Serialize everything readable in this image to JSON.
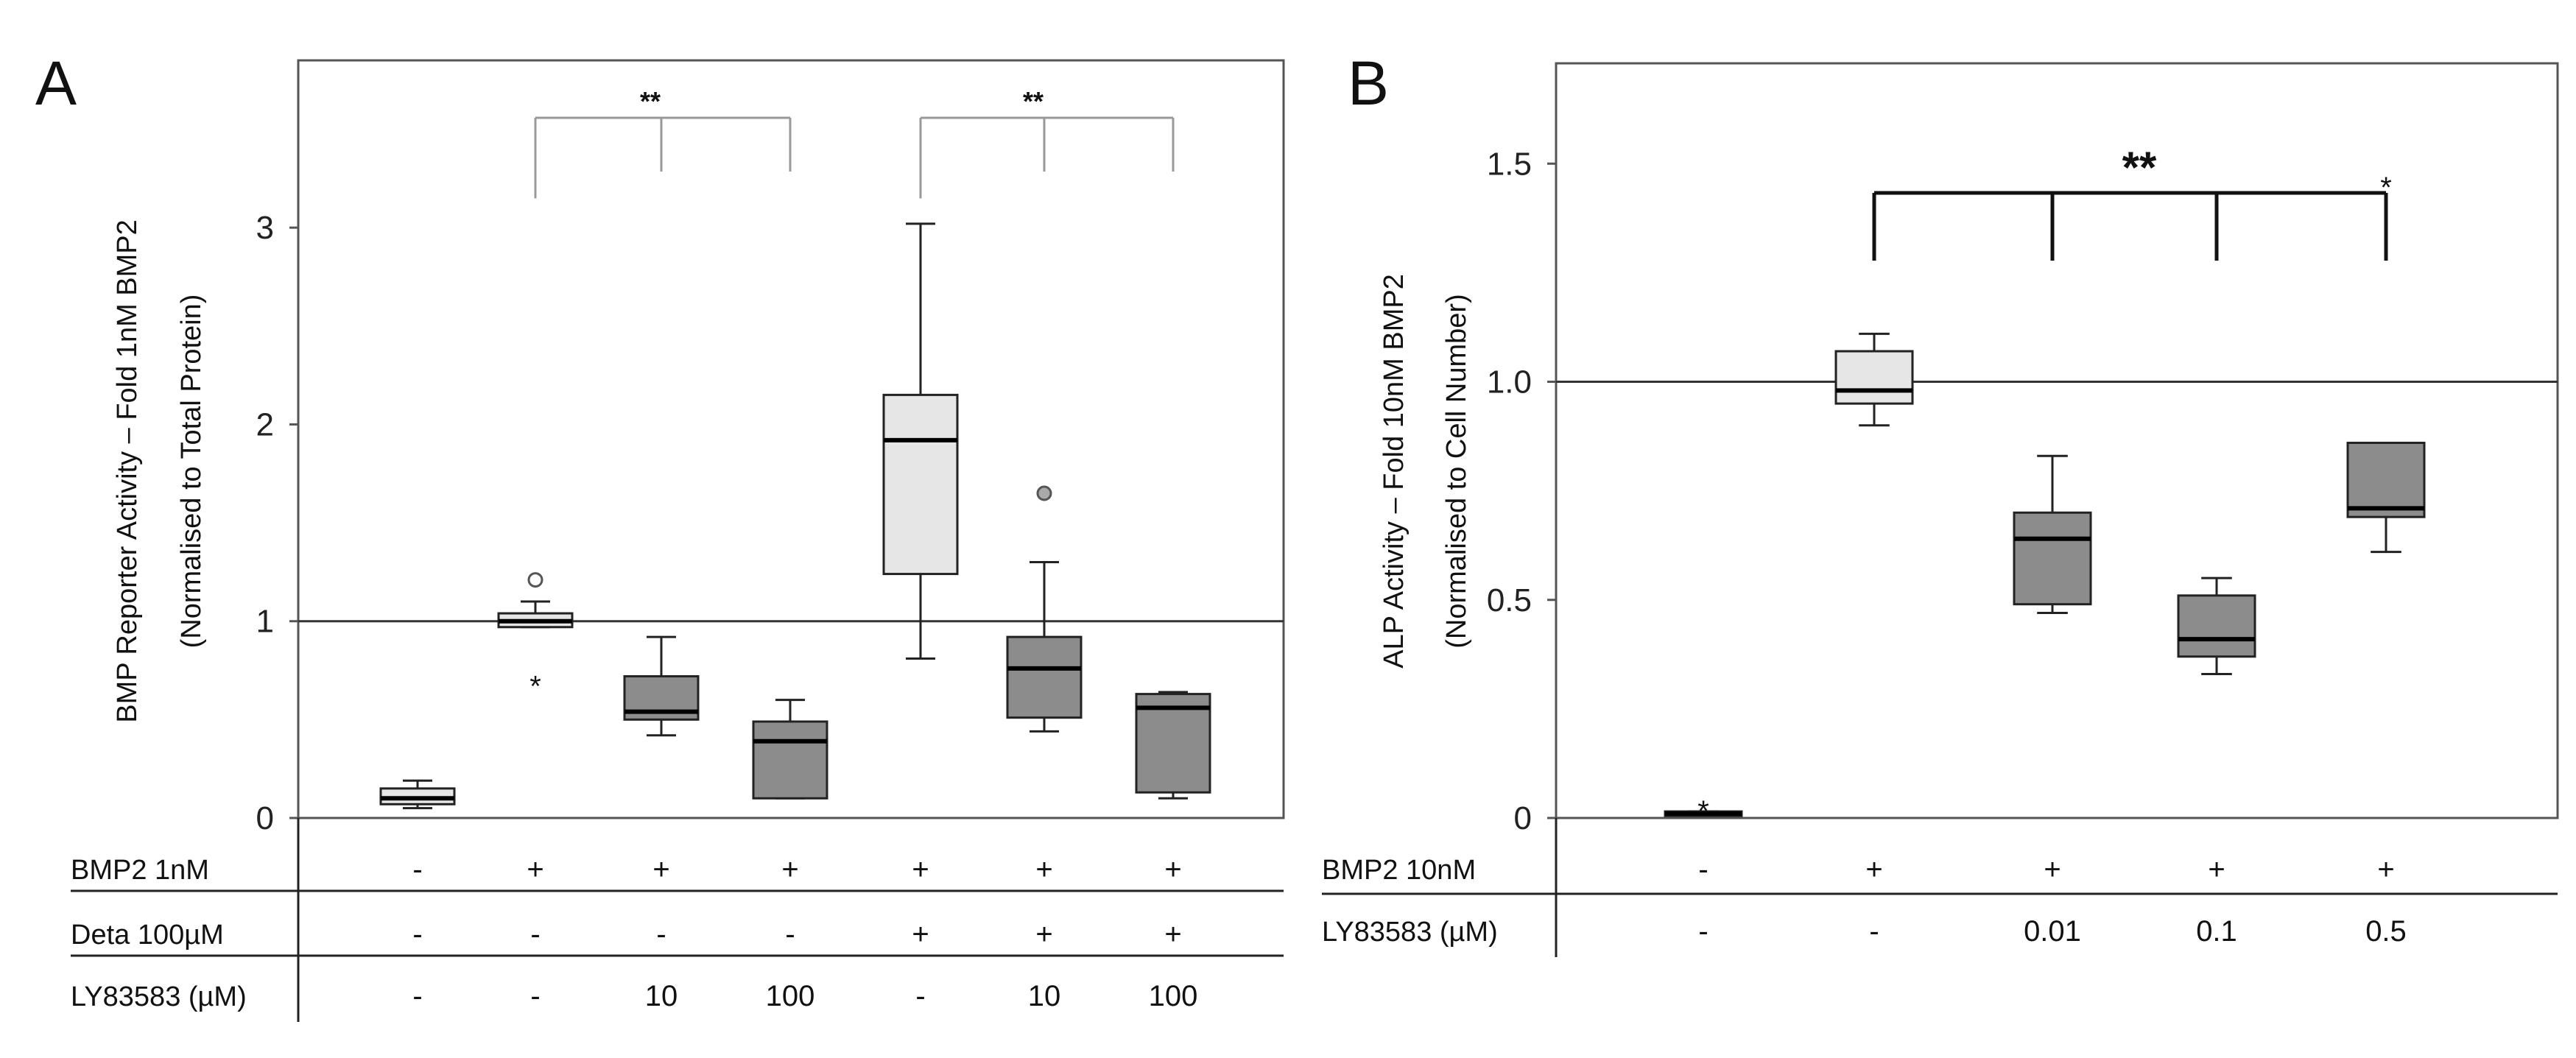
{
  "chart_data": [
    {
      "panel": "A",
      "type": "boxplot",
      "ylabel": [
        "BMP Reporter Activity – Fold 1nM BMP2",
        "(Normalised to Total Protein)"
      ],
      "ylim": [
        0,
        3.85
      ],
      "yticks": [
        "0",
        "1",
        "2",
        "3"
      ],
      "reference_line": 1,
      "boxes": [
        {
          "q1": 0.07,
          "median": 0.1,
          "q3": 0.15,
          "whisker_low": 0.05,
          "whisker_high": 0.19,
          "fill": "light",
          "outliers": [],
          "extremes": []
        },
        {
          "q1": 0.97,
          "median": 1.0,
          "q3": 1.04,
          "whisker_low": 0.97,
          "whisker_high": 1.1,
          "fill": "light",
          "outliers": [
            1.21
          ],
          "extremes": [
            0.68
          ]
        },
        {
          "q1": 0.5,
          "median": 0.54,
          "q3": 0.72,
          "whisker_low": 0.42,
          "whisker_high": 0.92,
          "fill": "dark",
          "outliers": [],
          "extremes": []
        },
        {
          "q1": 0.1,
          "median": 0.39,
          "q3": 0.49,
          "whisker_low": 0.1,
          "whisker_high": 0.6,
          "fill": "dark",
          "outliers": [],
          "extremes": []
        },
        {
          "q1": 1.24,
          "median": 1.92,
          "q3": 2.15,
          "whisker_low": 0.81,
          "whisker_high": 3.02,
          "fill": "light",
          "outliers": [],
          "extremes": []
        },
        {
          "q1": 0.51,
          "median": 0.76,
          "q3": 0.92,
          "whisker_low": 0.44,
          "whisker_high": 1.3,
          "fill": "dark",
          "outliers": [
            1.65
          ],
          "extremes": []
        },
        {
          "q1": 0.13,
          "median": 0.56,
          "q3": 0.63,
          "whisker_low": 0.1,
          "whisker_high": 0.64,
          "fill": "dark",
          "outliers": [],
          "extremes": []
        }
      ],
      "significance": [
        {
          "groups": [
            2,
            3,
            4
          ],
          "label": "**"
        },
        {
          "groups": [
            5,
            6,
            7
          ],
          "label": "**"
        }
      ],
      "conditions": [
        {
          "label": "BMP2 1nM",
          "values": [
            "-",
            "+",
            "+",
            "+",
            "+",
            "+",
            "+"
          ]
        },
        {
          "label": "Deta 100µM",
          "values": [
            "-",
            "-",
            "-",
            "-",
            "+",
            "+",
            "+"
          ]
        },
        {
          "label": "LY83583 (µM)",
          "values": [
            "-",
            "-",
            "10",
            "100",
            "-",
            "10",
            "100"
          ]
        }
      ]
    },
    {
      "panel": "B",
      "type": "boxplot",
      "ylabel": [
        "ALP Activity – Fold 10nM BMP2",
        "(Normalised to Cell Number)"
      ],
      "ylim": [
        0,
        1.73
      ],
      "yticks": [
        "0",
        "0.5",
        "1.0",
        "1.5"
      ],
      "reference_line": 1.0,
      "boxes": [
        {
          "q1": 0.005,
          "median": 0.01,
          "q3": 0.015,
          "whisker_low": 0.005,
          "whisker_high": 0.015,
          "fill": "light",
          "outliers": [],
          "extremes": [
            0.02
          ]
        },
        {
          "q1": 0.95,
          "median": 0.98,
          "q3": 1.07,
          "whisker_low": 0.9,
          "whisker_high": 1.11,
          "fill": "light",
          "outliers": [],
          "extremes": []
        },
        {
          "q1": 0.49,
          "median": 0.64,
          "q3": 0.7,
          "whisker_low": 0.47,
          "whisker_high": 0.83,
          "fill": "dark",
          "outliers": [],
          "extremes": []
        },
        {
          "q1": 0.37,
          "median": 0.41,
          "q3": 0.51,
          "whisker_low": 0.33,
          "whisker_high": 0.55,
          "fill": "dark",
          "outliers": [],
          "extremes": []
        },
        {
          "q1": 0.69,
          "median": 0.71,
          "q3": 0.86,
          "whisker_low": 0.61,
          "whisker_high": 0.86,
          "fill": "dark",
          "outliers": [],
          "extremes": [
            1.45
          ]
        }
      ],
      "significance": [
        {
          "groups": [
            2,
            3,
            4,
            5
          ],
          "label": "**"
        }
      ],
      "conditions": [
        {
          "label": "BMP2 10nM",
          "values": [
            "-",
            "+",
            "+",
            "+",
            "+"
          ]
        },
        {
          "label": "LY83583 (µM)",
          "values": [
            "-",
            "-",
            "0.01",
            "0.1",
            "0.5"
          ]
        }
      ]
    }
  ],
  "colors": {
    "light": "#e6e6e6",
    "dark": "#8c8c8c",
    "line": "#222222",
    "bracket_a": "#999999",
    "bracket_b": "#111111"
  }
}
